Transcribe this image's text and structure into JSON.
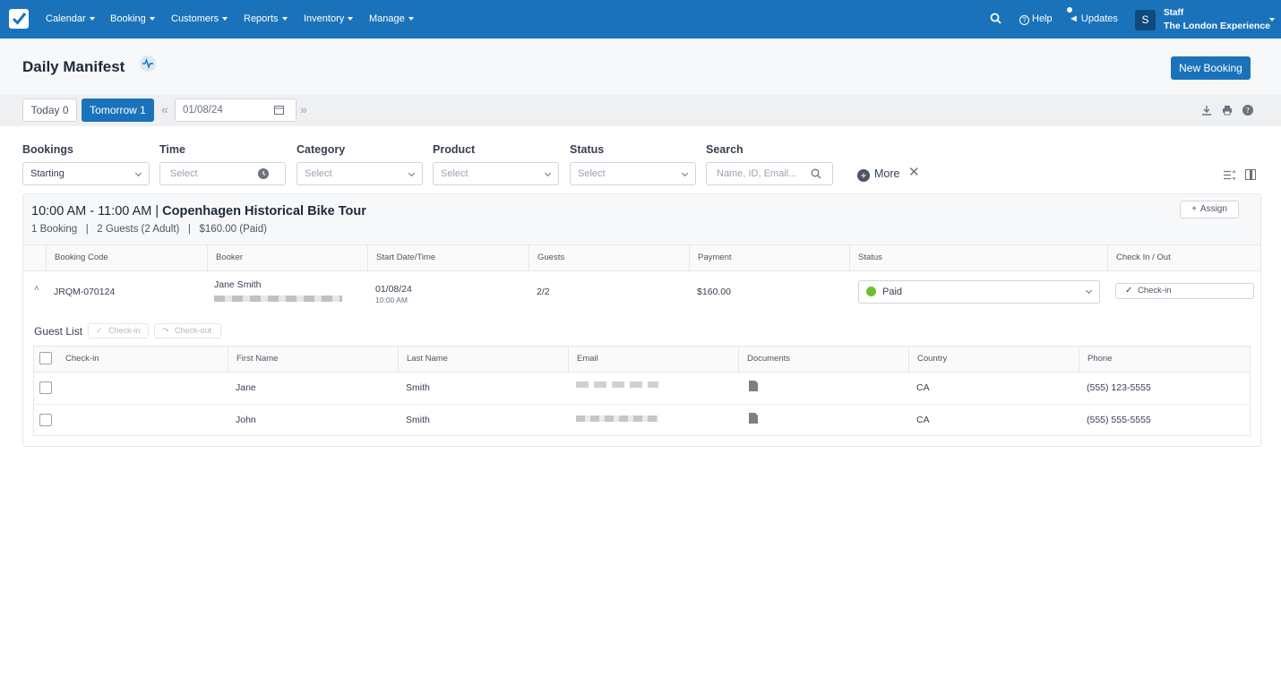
{
  "nav": {
    "menu": [
      {
        "label": "Calendar"
      },
      {
        "label": "Booking"
      },
      {
        "label": "Customers"
      },
      {
        "label": "Reports"
      },
      {
        "label": "Inventory"
      },
      {
        "label": "Manage"
      }
    ],
    "help_label": "Help",
    "updates_label": "Updates",
    "avatar_initial": "S",
    "user_role": "Staff",
    "user_company": "The London Experience"
  },
  "header": {
    "title": "Daily Manifest",
    "new_booking_label": "New Booking"
  },
  "datebar": {
    "today_label": "Today 0",
    "tomorrow_label": "Tomorrow 1",
    "date_value": "01/08/24"
  },
  "filters": {
    "bookings": {
      "label": "Bookings",
      "value": "Starting"
    },
    "time": {
      "label": "Time",
      "placeholder": "Select"
    },
    "category": {
      "label": "Category",
      "placeholder": "Select"
    },
    "product": {
      "label": "Product",
      "placeholder": "Select"
    },
    "status": {
      "label": "Status",
      "placeholder": "Select"
    },
    "search": {
      "label": "Search",
      "placeholder": "Name, ID, Email..."
    },
    "more_label": "More"
  },
  "tour": {
    "time_range": "10:00 AM - 11:00 AM |",
    "name": "Copenhagen Historical Bike Tour",
    "summary": "1 Booking   |   2 Guests (2 Adult)   |   $160.00 (Paid)",
    "assign_label": "Assign",
    "columns": [
      "Booking Code",
      "Booker",
      "Start Date/Time",
      "Guests",
      "Payment",
      "Status",
      "Check In / Out"
    ],
    "booking": {
      "code": "JRQM-070124",
      "booker": "Jane Smith",
      "start_date": "01/08/24",
      "start_time": "10:00 AM",
      "guests": "2/2",
      "payment": "$160.00",
      "status": "Paid",
      "checkin_label": "Check-in"
    }
  },
  "guests": {
    "label": "Guest List",
    "checkin_label": "Check-in",
    "checkout_label": "Check-out",
    "columns": [
      "Check-in",
      "First Name",
      "Last Name",
      "Email",
      "Documents",
      "Country",
      "Phone"
    ],
    "rows": [
      {
        "first": "Jane",
        "last": "Smith",
        "country": "CA",
        "phone": "(555) 123-5555"
      },
      {
        "first": "John",
        "last": "Smith",
        "country": "CA",
        "phone": "(555) 555-5555"
      }
    ]
  },
  "colors": {
    "brand": "#1a73ba",
    "paid": "#6cbf2e"
  }
}
